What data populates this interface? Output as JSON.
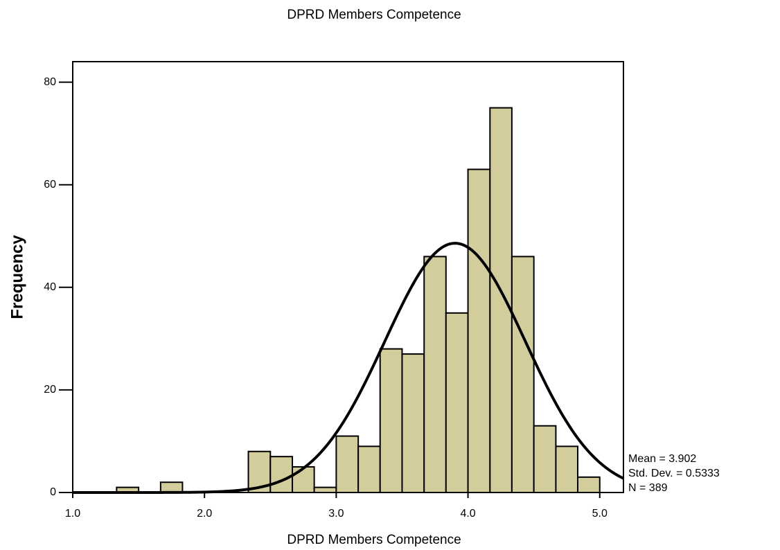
{
  "chart_data": {
    "type": "histogram",
    "title": "DPRD Members Competence",
    "x_label": "DPRD Members Competence",
    "y_label": "Frequency",
    "bins": [
      1.333,
      1.5,
      1.667,
      1.833,
      2.0,
      2.167,
      2.333,
      2.5,
      2.667,
      2.833,
      3.0,
      3.167,
      3.333,
      3.5,
      3.667,
      3.833,
      4.0,
      4.167,
      4.333,
      4.5,
      4.667,
      4.833,
      5.0
    ],
    "values": [
      1,
      0,
      2,
      0,
      0,
      0,
      8,
      7,
      5,
      1,
      11,
      9,
      28,
      27,
      46,
      35,
      63,
      75,
      46,
      13,
      9,
      3
    ],
    "color": "#d3cd9c",
    "edge_color": "#000000",
    "curve_color": "#000000",
    "xlim": [
      1.0,
      5.18
    ],
    "ylim": [
      0,
      84
    ],
    "xticks": [
      {
        "value": 1.0,
        "label": "1.0"
      },
      {
        "value": 2.0,
        "label": "2.0"
      },
      {
        "value": 3.0,
        "label": "3.0"
      },
      {
        "value": 4.0,
        "label": "4.0"
      },
      {
        "value": 5.0,
        "label": "5.0"
      }
    ],
    "yticks": [
      0,
      20,
      40,
      60,
      80
    ],
    "stats": {
      "mean": {
        "value": 3.902,
        "label": "Mean = 3.902"
      },
      "std": {
        "value": 0.5333,
        "label": "Std. Dev. = 0.5333"
      },
      "n": {
        "value": 389,
        "label": "N = 389"
      }
    }
  }
}
